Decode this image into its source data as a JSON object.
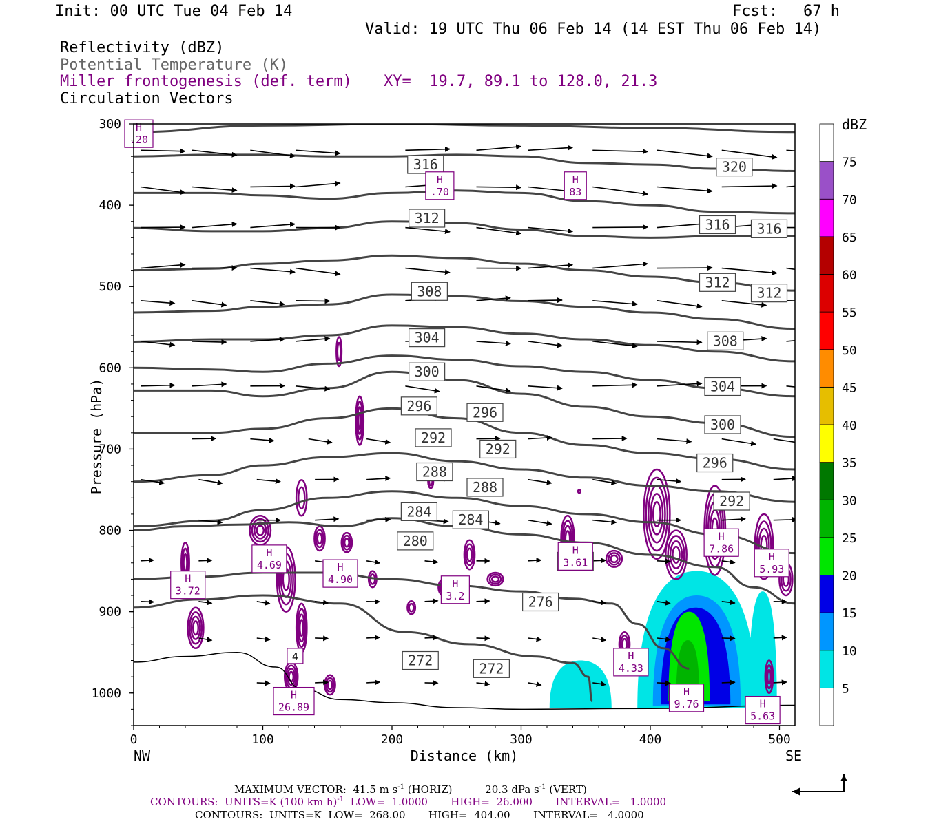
{
  "header": {
    "init": "Init: 00 UTC Tue 04 Feb 14",
    "fcst_label": "Fcst:",
    "fcst_value": "67 h",
    "valid": "Valid: 19 UTC Thu 06 Feb 14 (14 EST Thu 06 Feb 14)"
  },
  "legend": {
    "reflectivity": "Reflectivity (dBZ)",
    "theta": "Potential Temperature (K)",
    "frontogenesis": "Miller frontogenesis (def. term)",
    "xy": "XY=  19.7, 89.1 to 128.0, 21.3",
    "vectors": "Circulation Vectors"
  },
  "colors": {
    "theta_line": "#444444",
    "frontogenesis": "#800080",
    "terrain": "#000000",
    "refl": [
      "#00e5e5",
      "#0096ff",
      "#0000e6",
      "#00e600",
      "#00b400",
      "#007800",
      "#ffff00",
      "#e6be00",
      "#ff8c00",
      "#ff0000",
      "#dc0000",
      "#b40000",
      "#ff00ff",
      "#9a50c8",
      "#ffffff"
    ]
  },
  "footer": {
    "line1": "MAXIMUM VECTOR:  41.5 m s",
    "line1_sup": "-1",
    "line1_b": " (HORIZ)          20.3 dPa s",
    "line1_sup2": "-1",
    "line1_c": " (VERT)",
    "line2a": "CONTOURS:  UNITS=K (100 km h)",
    "line2_sup": "-1",
    "line2b": "  LOW=  1.0000       HIGH=  26.000       INTERVAL=   1.0000",
    "line3": "CONTOURS:  UNITS=K  LOW=  268.00       HIGH=  404.00       INTERVAL=   4.0000"
  },
  "chart_data": {
    "type": "cross-section",
    "xlabel": "Distance (km)",
    "ylabel": "Pressure (hPa)",
    "xlim": [
      0,
      512
    ],
    "ylim": [
      300,
      1040
    ],
    "x_ticks": [
      "0",
      "100",
      "200",
      "300",
      "400",
      "500"
    ],
    "y_ticks": [
      "300",
      "400",
      "500",
      "600",
      "700",
      "800",
      "900",
      "1000"
    ],
    "x_left_label": "NW",
    "x_right_label": "SE",
    "colorbar_unit": "dBZ",
    "colorbar_levels": [
      "5",
      "10",
      "15",
      "20",
      "25",
      "30",
      "35",
      "40",
      "45",
      "50",
      "55",
      "60",
      "65",
      "70",
      "75"
    ],
    "theta_lines": [
      {
        "value": 268,
        "pts": [
          [
            0,
            962
          ],
          [
            40,
            955
          ],
          [
            80,
            950
          ],
          [
            110,
            968
          ],
          [
            130,
            995
          ],
          [
            160,
            1008
          ],
          [
            200,
            1012
          ],
          [
            250,
            1018
          ],
          [
            300,
            1020
          ],
          [
            400,
            1019
          ],
          [
            512,
            1015
          ]
        ]
      },
      {
        "value": 272,
        "pts": [
          [
            0,
            895
          ],
          [
            50,
            885
          ],
          [
            100,
            880
          ],
          [
            160,
            890
          ],
          [
            210,
            925
          ],
          [
            260,
            940
          ],
          [
            310,
            955
          ],
          [
            340,
            963
          ],
          [
            352,
            980
          ],
          [
            355,
            1010
          ]
        ]
      },
      {
        "value": 276,
        "pts": [
          [
            0,
            860
          ],
          [
            50,
            857
          ],
          [
            100,
            852
          ],
          [
            150,
            852
          ],
          [
            200,
            860
          ],
          [
            250,
            868
          ],
          [
            300,
            875
          ],
          [
            340,
            884
          ],
          [
            370,
            890
          ],
          [
            390,
            915
          ],
          [
            410,
            945
          ],
          [
            430,
            970
          ]
        ]
      },
      {
        "value": 280,
        "pts": [
          [
            0,
            800
          ],
          [
            40,
            795
          ],
          [
            80,
            793
          ],
          [
            120,
            790
          ],
          [
            160,
            795
          ],
          [
            200,
            785
          ],
          [
            250,
            795
          ],
          [
            300,
            805
          ],
          [
            350,
            815
          ],
          [
            400,
            830
          ],
          [
            450,
            845
          ],
          [
            480,
            870
          ],
          [
            512,
            890
          ]
        ]
      },
      {
        "value": 284,
        "pts": [
          [
            0,
            795
          ],
          [
            60,
            788
          ],
          [
            100,
            775
          ],
          [
            150,
            760
          ],
          [
            200,
            752
          ],
          [
            250,
            760
          ],
          [
            300,
            770
          ],
          [
            350,
            780
          ],
          [
            400,
            790
          ],
          [
            450,
            805
          ],
          [
            512,
            828
          ]
        ]
      },
      {
        "value": 288,
        "pts": [
          [
            0,
            740
          ],
          [
            60,
            732
          ],
          [
            100,
            720
          ],
          [
            150,
            710
          ],
          [
            200,
            705
          ],
          [
            250,
            715
          ],
          [
            300,
            725
          ],
          [
            350,
            735
          ],
          [
            400,
            745
          ],
          [
            450,
            752
          ],
          [
            512,
            765
          ]
        ]
      },
      {
        "value": 292,
        "pts": [
          [
            0,
            680
          ],
          [
            60,
            680
          ],
          [
            100,
            675
          ],
          [
            150,
            662
          ],
          [
            200,
            650
          ],
          [
            250,
            662
          ],
          [
            300,
            680
          ],
          [
            350,
            695
          ],
          [
            400,
            705
          ],
          [
            450,
            712
          ],
          [
            512,
            725
          ]
        ]
      },
      {
        "value": 296,
        "pts": [
          [
            0,
            628
          ],
          [
            60,
            628
          ],
          [
            100,
            635
          ],
          [
            150,
            625
          ],
          [
            200,
            605
          ],
          [
            250,
            615
          ],
          [
            300,
            632
          ],
          [
            350,
            648
          ],
          [
            400,
            660
          ],
          [
            450,
            668
          ],
          [
            512,
            685
          ]
        ]
      },
      {
        "value": 300,
        "pts": [
          [
            0,
            600
          ],
          [
            60,
            602
          ],
          [
            100,
            605
          ],
          [
            150,
            595
          ],
          [
            200,
            585
          ],
          [
            250,
            590
          ],
          [
            300,
            598
          ],
          [
            350,
            605
          ],
          [
            400,
            615
          ],
          [
            450,
            625
          ],
          [
            512,
            635
          ]
        ]
      },
      {
        "value": 304,
        "pts": [
          [
            0,
            568
          ],
          [
            60,
            565
          ],
          [
            100,
            565
          ],
          [
            150,
            560
          ],
          [
            200,
            548
          ],
          [
            250,
            550
          ],
          [
            300,
            558
          ],
          [
            350,
            565
          ],
          [
            400,
            572
          ],
          [
            450,
            580
          ],
          [
            512,
            592
          ]
        ]
      },
      {
        "value": 308,
        "pts": [
          [
            0,
            532
          ],
          [
            60,
            530
          ],
          [
            100,
            525
          ],
          [
            150,
            522
          ],
          [
            200,
            510
          ],
          [
            250,
            512
          ],
          [
            300,
            518
          ],
          [
            350,
            525
          ],
          [
            400,
            532
          ],
          [
            450,
            540
          ],
          [
            512,
            552
          ]
        ]
      },
      {
        "value": 312,
        "pts": [
          [
            0,
            480
          ],
          [
            60,
            478
          ],
          [
            100,
            472
          ],
          [
            150,
            468
          ],
          [
            200,
            462
          ],
          [
            250,
            465
          ],
          [
            300,
            472
          ],
          [
            350,
            480
          ],
          [
            400,
            488
          ],
          [
            450,
            495
          ],
          [
            512,
            505
          ]
        ]
      },
      {
        "value": 316,
        "pts": [
          [
            0,
            428
          ],
          [
            60,
            432
          ],
          [
            100,
            432
          ],
          [
            150,
            428
          ],
          [
            200,
            420
          ],
          [
            250,
            422
          ],
          [
            300,
            430
          ],
          [
            350,
            438
          ],
          [
            400,
            440
          ],
          [
            450,
            438
          ],
          [
            512,
            438
          ]
        ]
      },
      {
        "value": 320,
        "pts": [
          [
            0,
            385
          ],
          [
            60,
            385
          ],
          [
            100,
            388
          ],
          [
            150,
            392
          ],
          [
            200,
            385
          ],
          [
            250,
            382
          ],
          [
            300,
            385
          ],
          [
            350,
            395
          ],
          [
            400,
            400
          ],
          [
            450,
            408
          ],
          [
            512,
            410
          ]
        ]
      },
      {
        "value": 324,
        "pts": [
          [
            0,
            340
          ],
          [
            60,
            338
          ],
          [
            100,
            338
          ],
          [
            150,
            340
          ],
          [
            200,
            340
          ],
          [
            250,
            338
          ],
          [
            300,
            340
          ],
          [
            350,
            348
          ],
          [
            400,
            350
          ],
          [
            450,
            355
          ],
          [
            512,
            358
          ]
        ]
      },
      {
        "value": 328,
        "pts": [
          [
            0,
            310
          ],
          [
            100,
            302
          ],
          [
            200,
            300
          ],
          [
            300,
            302
          ],
          [
            400,
            305
          ],
          [
            512,
            310
          ]
        ]
      }
    ],
    "theta_labels": [
      {
        "text": "316",
        "x": 226,
        "p": 350
      },
      {
        "text": "320",
        "x": 465,
        "p": 353
      },
      {
        "text": "312",
        "x": 227,
        "p": 416
      },
      {
        "text": "316",
        "x": 452,
        "p": 424
      },
      {
        "text": "316",
        "x": 492,
        "p": 429
      },
      {
        "text": "308",
        "x": 229,
        "p": 506
      },
      {
        "text": "312",
        "x": 452,
        "p": 495
      },
      {
        "text": "312",
        "x": 492,
        "p": 508
      },
      {
        "text": "304",
        "x": 227,
        "p": 563
      },
      {
        "text": "308",
        "x": 458,
        "p": 567
      },
      {
        "text": "300",
        "x": 227,
        "p": 605
      },
      {
        "text": "304",
        "x": 456,
        "p": 623
      },
      {
        "text": "296",
        "x": 221,
        "p": 647
      },
      {
        "text": "296",
        "x": 272,
        "p": 655
      },
      {
        "text": "300",
        "x": 456,
        "p": 670
      },
      {
        "text": "292",
        "x": 232,
        "p": 686
      },
      {
        "text": "292",
        "x": 282,
        "p": 700
      },
      {
        "text": "296",
        "x": 450,
        "p": 717
      },
      {
        "text": "288",
        "x": 233,
        "p": 728
      },
      {
        "text": "288",
        "x": 272,
        "p": 747
      },
      {
        "text": "292",
        "x": 463,
        "p": 764
      },
      {
        "text": "284",
        "x": 221,
        "p": 777
      },
      {
        "text": "284",
        "x": 261,
        "p": 787
      },
      {
        "text": "280",
        "x": 218,
        "p": 813
      },
      {
        "text": "280",
        "x": 342,
        "p": 838
      },
      {
        "text": "276",
        "x": 315,
        "p": 888
      },
      {
        "text": "272",
        "x": 222,
        "p": 960
      },
      {
        "text": "272",
        "x": 277,
        "p": 970
      }
    ],
    "highs": [
      {
        "label": "H",
        "value": ".20",
        "x": 4,
        "p": 312
      },
      {
        "label": "H",
        "value": ".70",
        "x": 237,
        "p": 376
      },
      {
        "label": "H",
        "value": "83",
        "x": 342,
        "p": 376
      },
      {
        "label": "H",
        "value": "3.72",
        "x": 42,
        "p": 867
      },
      {
        "label": "H",
        "value": "4.69",
        "x": 105,
        "p": 835
      },
      {
        "label": "H",
        "value": "4.90",
        "x": 160,
        "p": 853
      },
      {
        "label": "H",
        "value": "3.2",
        "x": 249,
        "p": 873
      },
      {
        "label": "H",
        "value": "3.61",
        "x": 342,
        "p": 832
      },
      {
        "label": "H",
        "value": "7.86",
        "x": 455,
        "p": 815
      },
      {
        "label": "H",
        "value": "5.93",
        "x": 494,
        "p": 840
      },
      {
        "label": "H",
        "value": "4.33",
        "x": 385,
        "p": 962
      },
      {
        "label": "H",
        "value": "9.76",
        "x": 428,
        "p": 1006
      },
      {
        "label": "H",
        "value": "5.63",
        "x": 487,
        "p": 1021
      },
      {
        "label": "H",
        "value": "26.89",
        "x": 124,
        "p": 1010
      },
      {
        "label": "",
        "value": "4",
        "x": 125,
        "p": 962
      }
    ],
    "reflectivity_cells": [
      {
        "x0": 322,
        "x1": 370,
        "p_top": 960,
        "p_bot": 1018,
        "dbz": 5
      },
      {
        "x0": 390,
        "x1": 482,
        "p_top": 850,
        "p_bot": 1018,
        "dbz": 5
      },
      {
        "x0": 476,
        "x1": 498,
        "p_top": 875,
        "p_bot": 1018,
        "dbz": 5
      },
      {
        "x0": 402,
        "x1": 470,
        "p_top": 880,
        "p_bot": 1016,
        "dbz": 10
      },
      {
        "x0": 408,
        "x1": 462,
        "p_top": 895,
        "p_bot": 1014,
        "dbz": 15
      },
      {
        "x0": 414,
        "x1": 446,
        "p_top": 900,
        "p_bot": 1010,
        "dbz": 20
      },
      {
        "x0": 420,
        "x1": 438,
        "p_top": 935,
        "p_bot": 1005,
        "dbz": 25
      }
    ]
  }
}
